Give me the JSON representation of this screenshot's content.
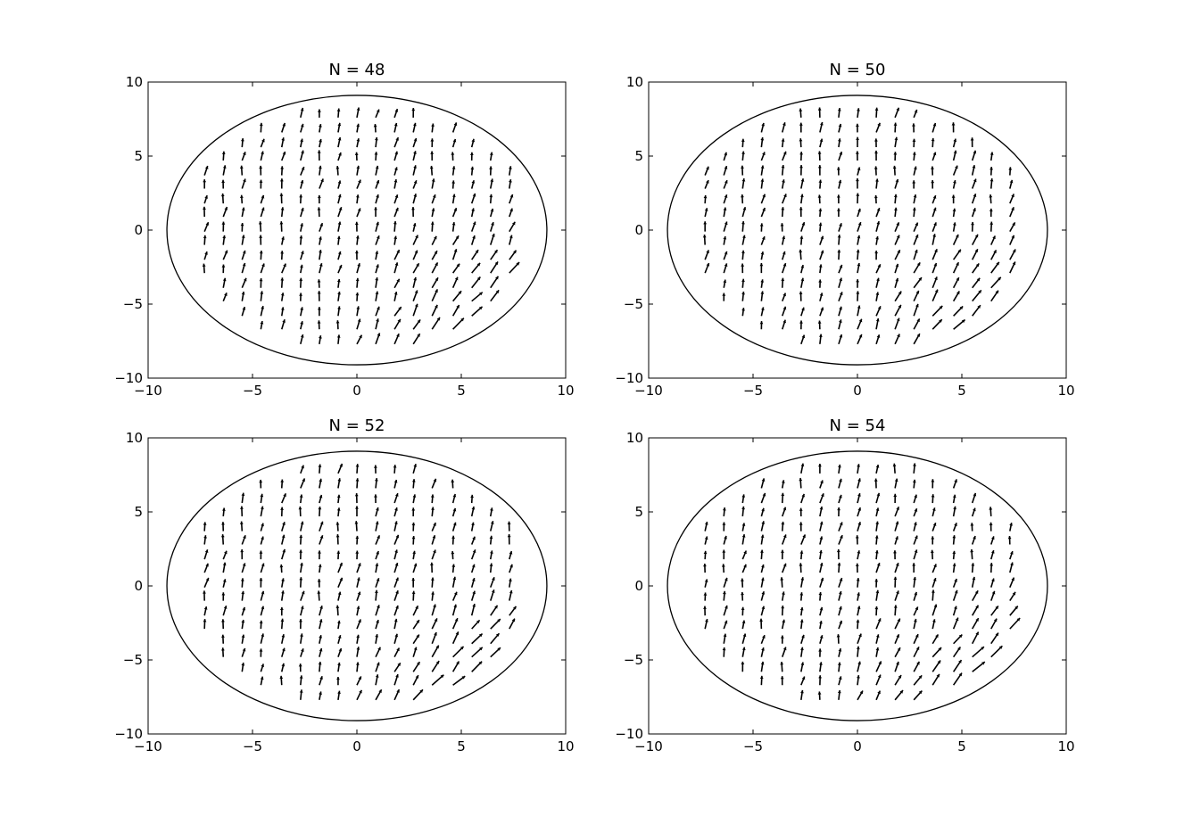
{
  "figure": {
    "background": "#ffffff",
    "ink_color": "#000000"
  },
  "chart_data": [
    {
      "type": "quiver",
      "title": "N = 48",
      "xlabel": "",
      "ylabel": "",
      "xlim": [
        -10,
        10
      ],
      "ylim": [
        -10,
        10
      ],
      "xticks": [
        "−10",
        "−5",
        "0",
        "5",
        "10"
      ],
      "yticks": [
        "−10",
        "−5",
        "0",
        "5",
        "10"
      ],
      "grid": false,
      "boundary": {
        "shape": "ellipse",
        "center": [
          0,
          0
        ],
        "rx": 9.1,
        "ry": 9.1
      },
      "field": {
        "description": "grid of arrows inside boundary, mostly pointing up, tilted rightward toward bottom-right",
        "grid_x": [
          -8.2,
          -7.3,
          -6.4,
          -5.5,
          -4.6,
          -3.6,
          -2.7,
          -1.8,
          -0.9,
          0,
          0.9,
          1.8,
          2.7,
          3.6,
          4.6,
          5.5,
          6.4,
          7.3
        ],
        "grid_y": [
          7.6,
          6.6,
          5.6,
          4.7,
          3.7,
          2.8,
          1.8,
          0.9,
          -0.1,
          -1.0,
          -2.0,
          -2.9,
          -3.9,
          -4.8,
          -5.8,
          -6.7,
          -7.7
        ]
      }
    },
    {
      "type": "quiver",
      "title": "N = 50",
      "xlabel": "",
      "ylabel": "",
      "xlim": [
        -10,
        10
      ],
      "ylim": [
        -10,
        10
      ],
      "xticks": [
        "−10",
        "−5",
        "0",
        "5",
        "10"
      ],
      "yticks": [
        "−10",
        "−5",
        "0",
        "5",
        "10"
      ],
      "grid": false,
      "boundary": {
        "shape": "ellipse",
        "center": [
          0,
          0
        ],
        "rx": 9.1,
        "ry": 9.1
      },
      "field": {
        "description": "grid of arrows inside boundary, mostly pointing up, tilted rightward toward bottom-right",
        "grid_x": [
          -8.2,
          -7.3,
          -6.4,
          -5.5,
          -4.6,
          -3.6,
          -2.7,
          -1.8,
          -0.9,
          0,
          0.9,
          1.8,
          2.7,
          3.6,
          4.6,
          5.5,
          6.4,
          7.3
        ],
        "grid_y": [
          7.6,
          6.6,
          5.6,
          4.7,
          3.7,
          2.8,
          1.8,
          0.9,
          -0.1,
          -1.0,
          -2.0,
          -2.9,
          -3.9,
          -4.8,
          -5.8,
          -6.7,
          -7.7
        ]
      }
    },
    {
      "type": "quiver",
      "title": "N = 52",
      "xlabel": "",
      "ylabel": "",
      "xlim": [
        -10,
        10
      ],
      "ylim": [
        -10,
        10
      ],
      "xticks": [
        "−10",
        "−5",
        "0",
        "5",
        "10"
      ],
      "yticks": [
        "−10",
        "−5",
        "0",
        "5",
        "10"
      ],
      "grid": false,
      "boundary": {
        "shape": "ellipse",
        "center": [
          0,
          0
        ],
        "rx": 9.1,
        "ry": 9.1
      },
      "field": {
        "description": "grid of arrows inside boundary, mostly pointing up, tilted rightward toward bottom-right",
        "grid_x": [
          -8.2,
          -7.3,
          -6.4,
          -5.5,
          -4.6,
          -3.6,
          -2.7,
          -1.8,
          -0.9,
          0,
          0.9,
          1.8,
          2.7,
          3.6,
          4.6,
          5.5,
          6.4,
          7.3
        ],
        "grid_y": [
          7.6,
          6.6,
          5.6,
          4.7,
          3.7,
          2.8,
          1.8,
          0.9,
          -0.1,
          -1.0,
          -2.0,
          -2.9,
          -3.9,
          -4.8,
          -5.8,
          -6.7,
          -7.7
        ]
      }
    },
    {
      "type": "quiver",
      "title": "N = 54",
      "xlabel": "",
      "ylabel": "",
      "xlim": [
        -10,
        10
      ],
      "ylim": [
        -10,
        10
      ],
      "xticks": [
        "−10",
        "−5",
        "0",
        "5",
        "10"
      ],
      "yticks": [
        "−10",
        "−5",
        "0",
        "5",
        "10"
      ],
      "grid": false,
      "boundary": {
        "shape": "ellipse",
        "center": [
          0,
          0
        ],
        "rx": 9.1,
        "ry": 9.1
      },
      "field": {
        "description": "grid of arrows inside boundary, mostly pointing up, tilted rightward toward bottom-right",
        "grid_x": [
          -8.2,
          -7.3,
          -6.4,
          -5.5,
          -4.6,
          -3.6,
          -2.7,
          -1.8,
          -0.9,
          0,
          0.9,
          1.8,
          2.7,
          3.6,
          4.6,
          5.5,
          6.4,
          7.3
        ],
        "grid_y": [
          7.6,
          6.6,
          5.6,
          4.7,
          3.7,
          2.8,
          1.8,
          0.9,
          -0.1,
          -1.0,
          -2.0,
          -2.9,
          -3.9,
          -4.8,
          -5.8,
          -6.7,
          -7.7
        ]
      }
    }
  ]
}
